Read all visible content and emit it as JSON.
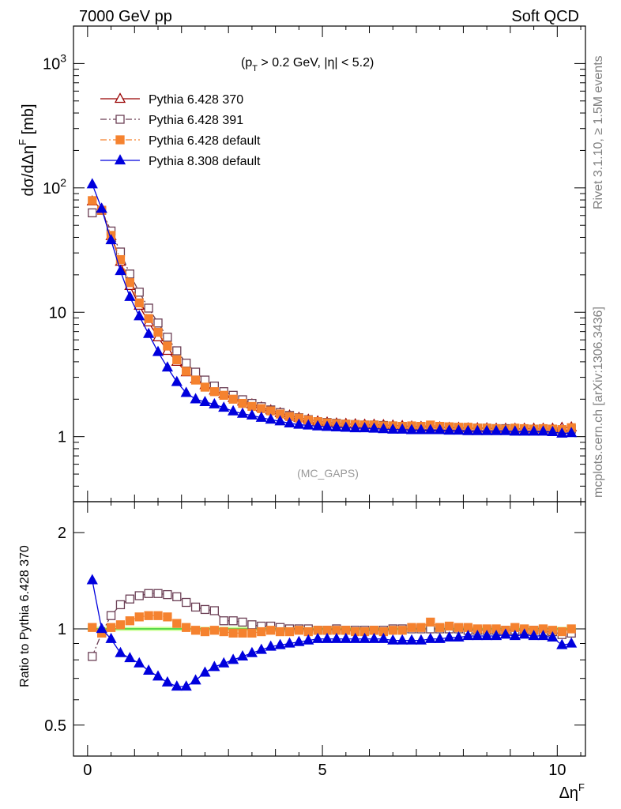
{
  "header": {
    "left": "7000 GeV pp",
    "right": "Soft QCD"
  },
  "side_text": {
    "rivet": "Rivet 3.1.10, ≥ 1.5M events",
    "mcplots": "mcplots.cern.ch [arXiv:1306.3436]"
  },
  "chart_data": [
    {
      "type": "line",
      "panel": "main",
      "annotation": "(p_T > 0.2 GeV, |η| < 5.2)",
      "annotation_parts": {
        "open": "(p",
        "sub": "T",
        "rest": " > 0.2 GeV, |η| < 5.2)"
      },
      "watermark": "(MC_GAPS)",
      "ylabel": "dσ/dΔη^F [mb]",
      "ylabel_parts": {
        "main": "dσ/dΔη",
        "sup": "F",
        "tail": " [mb]"
      },
      "yscale": "log",
      "xlim": [
        -0.3,
        10.6
      ],
      "ylim": [
        0.3,
        2000
      ],
      "y_ticks": [
        {
          "v": 1,
          "label": "1"
        },
        {
          "v": 10,
          "label": "10"
        },
        {
          "v": 100,
          "label": "10",
          "exp": "2"
        },
        {
          "v": 1000,
          "label": "10",
          "exp": "3"
        }
      ],
      "legend_position": "top-left",
      "x": [
        0.1,
        0.3,
        0.5,
        0.7,
        0.9,
        1.1,
        1.3,
        1.5,
        1.7,
        1.9,
        2.1,
        2.3,
        2.5,
        2.7,
        2.9,
        3.1,
        3.3,
        3.5,
        3.7,
        3.9,
        4.1,
        4.3,
        4.5,
        4.7,
        4.9,
        5.1,
        5.3,
        5.5,
        5.7,
        5.9,
        6.1,
        6.3,
        6.5,
        6.7,
        6.9,
        7.1,
        7.3,
        7.5,
        7.7,
        7.9,
        8.1,
        8.3,
        8.5,
        8.7,
        8.9,
        9.1,
        9.3,
        9.5,
        9.7,
        9.9,
        10.1,
        10.3
      ],
      "series": [
        {
          "name": "Pythia 6.428 370",
          "color": "#990000",
          "marker": "open-triangle",
          "dash": "solid",
          "values": [
            78,
            68,
            41,
            25.5,
            16.3,
            11.3,
            8.3,
            6.3,
            4.9,
            4.0,
            3.3,
            2.9,
            2.6,
            2.35,
            2.2,
            2.05,
            1.92,
            1.82,
            1.72,
            1.63,
            1.55,
            1.48,
            1.42,
            1.37,
            1.33,
            1.3,
            1.28,
            1.27,
            1.26,
            1.25,
            1.25,
            1.24,
            1.23,
            1.22,
            1.21,
            1.2,
            1.19,
            1.19,
            1.18,
            1.18,
            1.17,
            1.17,
            1.17,
            1.16,
            1.16,
            1.16,
            1.16,
            1.16,
            1.16,
            1.16,
            1.18,
            1.19
          ]
        },
        {
          "name": "Pythia 6.428 391",
          "color": "#6b3f55",
          "marker": "open-square",
          "dash": "dashdot",
          "values": [
            63,
            66,
            45,
            30.5,
            20.3,
            14.5,
            10.8,
            8.2,
            6.3,
            4.9,
            3.9,
            3.3,
            2.85,
            2.55,
            2.3,
            2.15,
            1.98,
            1.85,
            1.74,
            1.64,
            1.56,
            1.48,
            1.42,
            1.37,
            1.32,
            1.3,
            1.28,
            1.26,
            1.25,
            1.24,
            1.24,
            1.23,
            1.22,
            1.21,
            1.2,
            1.2,
            1.2,
            1.19,
            1.19,
            1.18,
            1.17,
            1.17,
            1.17,
            1.16,
            1.16,
            1.15,
            1.15,
            1.15,
            1.15,
            1.15,
            1.13,
            1.15
          ]
        },
        {
          "name": "Pythia 6.428 default",
          "color": "#f5822f",
          "marker": "filled-square",
          "dash": "dashdot",
          "values": [
            79,
            66,
            41.5,
            26.5,
            17.3,
            11.9,
            8.9,
            6.9,
            5.35,
            4.15,
            3.35,
            2.85,
            2.5,
            2.3,
            2.15,
            2.0,
            1.85,
            1.75,
            1.68,
            1.61,
            1.52,
            1.45,
            1.41,
            1.36,
            1.32,
            1.29,
            1.27,
            1.26,
            1.25,
            1.24,
            1.24,
            1.22,
            1.22,
            1.21,
            1.22,
            1.21,
            1.24,
            1.21,
            1.2,
            1.19,
            1.19,
            1.17,
            1.17,
            1.16,
            1.15,
            1.17,
            1.16,
            1.15,
            1.16,
            1.15,
            1.14,
            1.18
          ]
        },
        {
          "name": "Pythia 8.308 default",
          "color": "#0000dd",
          "marker": "filled-triangle",
          "dash": "solid",
          "values": [
            107,
            68,
            38,
            21.5,
            13.3,
            9.3,
            6.7,
            4.8,
            3.6,
            2.75,
            2.25,
            2.0,
            1.9,
            1.82,
            1.71,
            1.6,
            1.53,
            1.48,
            1.42,
            1.37,
            1.33,
            1.28,
            1.25,
            1.23,
            1.21,
            1.2,
            1.19,
            1.18,
            1.17,
            1.17,
            1.16,
            1.15,
            1.14,
            1.14,
            1.13,
            1.13,
            1.13,
            1.13,
            1.12,
            1.12,
            1.11,
            1.11,
            1.11,
            1.11,
            1.11,
            1.1,
            1.1,
            1.1,
            1.1,
            1.09,
            1.06,
            1.07
          ]
        }
      ]
    },
    {
      "type": "line",
      "panel": "ratio",
      "ylabel": "Ratio to Pythia 6.428 370",
      "xlabel": "Δη^F",
      "xlabel_parts": {
        "main": "Δη",
        "sup": "F"
      },
      "yscale": "log",
      "xlim": [
        -0.3,
        10.6
      ],
      "ylim": [
        0.4,
        2.5
      ],
      "y_ticks": [
        {
          "v": 0.5,
          "label": "0.5"
        },
        {
          "v": 1,
          "label": "1"
        },
        {
          "v": 2,
          "label": "2"
        }
      ],
      "x_ticks": [
        {
          "v": 0,
          "label": "0"
        },
        {
          "v": 5,
          "label": "5"
        },
        {
          "v": 10,
          "label": "10"
        }
      ],
      "reference_line": {
        "y": 1,
        "color": "#33cc33"
      },
      "reference_band": {
        "ylim": [
          0.985,
          1.015
        ],
        "color": "#ccff99"
      },
      "x": [
        0.1,
        0.3,
        0.5,
        0.7,
        0.9,
        1.1,
        1.3,
        1.5,
        1.7,
        1.9,
        2.1,
        2.3,
        2.5,
        2.7,
        2.9,
        3.1,
        3.3,
        3.5,
        3.7,
        3.9,
        4.1,
        4.3,
        4.5,
        4.7,
        4.9,
        5.1,
        5.3,
        5.5,
        5.7,
        5.9,
        6.1,
        6.3,
        6.5,
        6.7,
        6.9,
        7.1,
        7.3,
        7.5,
        7.7,
        7.9,
        8.1,
        8.3,
        8.5,
        8.7,
        8.9,
        9.1,
        9.3,
        9.5,
        9.7,
        9.9,
        10.1,
        10.3
      ],
      "series": [
        {
          "name": "Pythia 6.428 391",
          "color": "#6b3f55",
          "marker": "open-square",
          "dash": "dashdot",
          "values": [
            0.82,
            0.97,
            1.1,
            1.19,
            1.24,
            1.27,
            1.29,
            1.29,
            1.28,
            1.26,
            1.21,
            1.17,
            1.15,
            1.14,
            1.06,
            1.06,
            1.05,
            1.03,
            1.02,
            1.02,
            1.01,
            1.0,
            1.0,
            1.0,
            0.99,
            0.99,
            1.0,
            0.99,
            0.99,
            0.99,
            0.99,
            0.99,
            1.0,
            1.0,
            1.0,
            1.0,
            1.0,
            1.0,
            1.0,
            1.0,
            0.99,
            0.99,
            0.99,
            0.99,
            0.99,
            0.99,
            0.99,
            0.99,
            0.98,
            0.98,
            0.96,
            0.97
          ]
        },
        {
          "name": "Pythia 6.428 default",
          "color": "#f5822f",
          "marker": "filled-square",
          "dash": "dashdot",
          "values": [
            1.01,
            0.97,
            1.01,
            1.03,
            1.06,
            1.09,
            1.1,
            1.1,
            1.09,
            1.04,
            1.01,
            0.99,
            0.98,
            0.99,
            0.98,
            0.97,
            0.97,
            0.97,
            0.98,
            0.99,
            0.98,
            0.98,
            0.99,
            0.98,
            0.99,
            0.99,
            0.99,
            0.99,
            0.98,
            0.98,
            0.99,
            0.98,
            0.99,
            0.99,
            1.01,
            1.01,
            1.05,
            1.01,
            1.02,
            1.01,
            1.01,
            1.0,
            1.0,
            1.0,
            0.99,
            1.01,
            1.0,
            0.99,
            1.0,
            0.99,
            0.98,
            1.0
          ]
        },
        {
          "name": "Pythia 8.308 default",
          "color": "#0000dd",
          "marker": "filled-triangle",
          "dash": "solid",
          "values": [
            1.42,
            1.0,
            0.93,
            0.84,
            0.81,
            0.78,
            0.74,
            0.71,
            0.68,
            0.66,
            0.66,
            0.69,
            0.73,
            0.76,
            0.78,
            0.8,
            0.82,
            0.84,
            0.86,
            0.88,
            0.89,
            0.9,
            0.91,
            0.92,
            0.93,
            0.93,
            0.93,
            0.93,
            0.93,
            0.93,
            0.93,
            0.93,
            0.92,
            0.92,
            0.92,
            0.92,
            0.93,
            0.93,
            0.94,
            0.94,
            0.95,
            0.95,
            0.95,
            0.95,
            0.96,
            0.95,
            0.96,
            0.95,
            0.95,
            0.94,
            0.89,
            0.9
          ]
        }
      ]
    }
  ]
}
